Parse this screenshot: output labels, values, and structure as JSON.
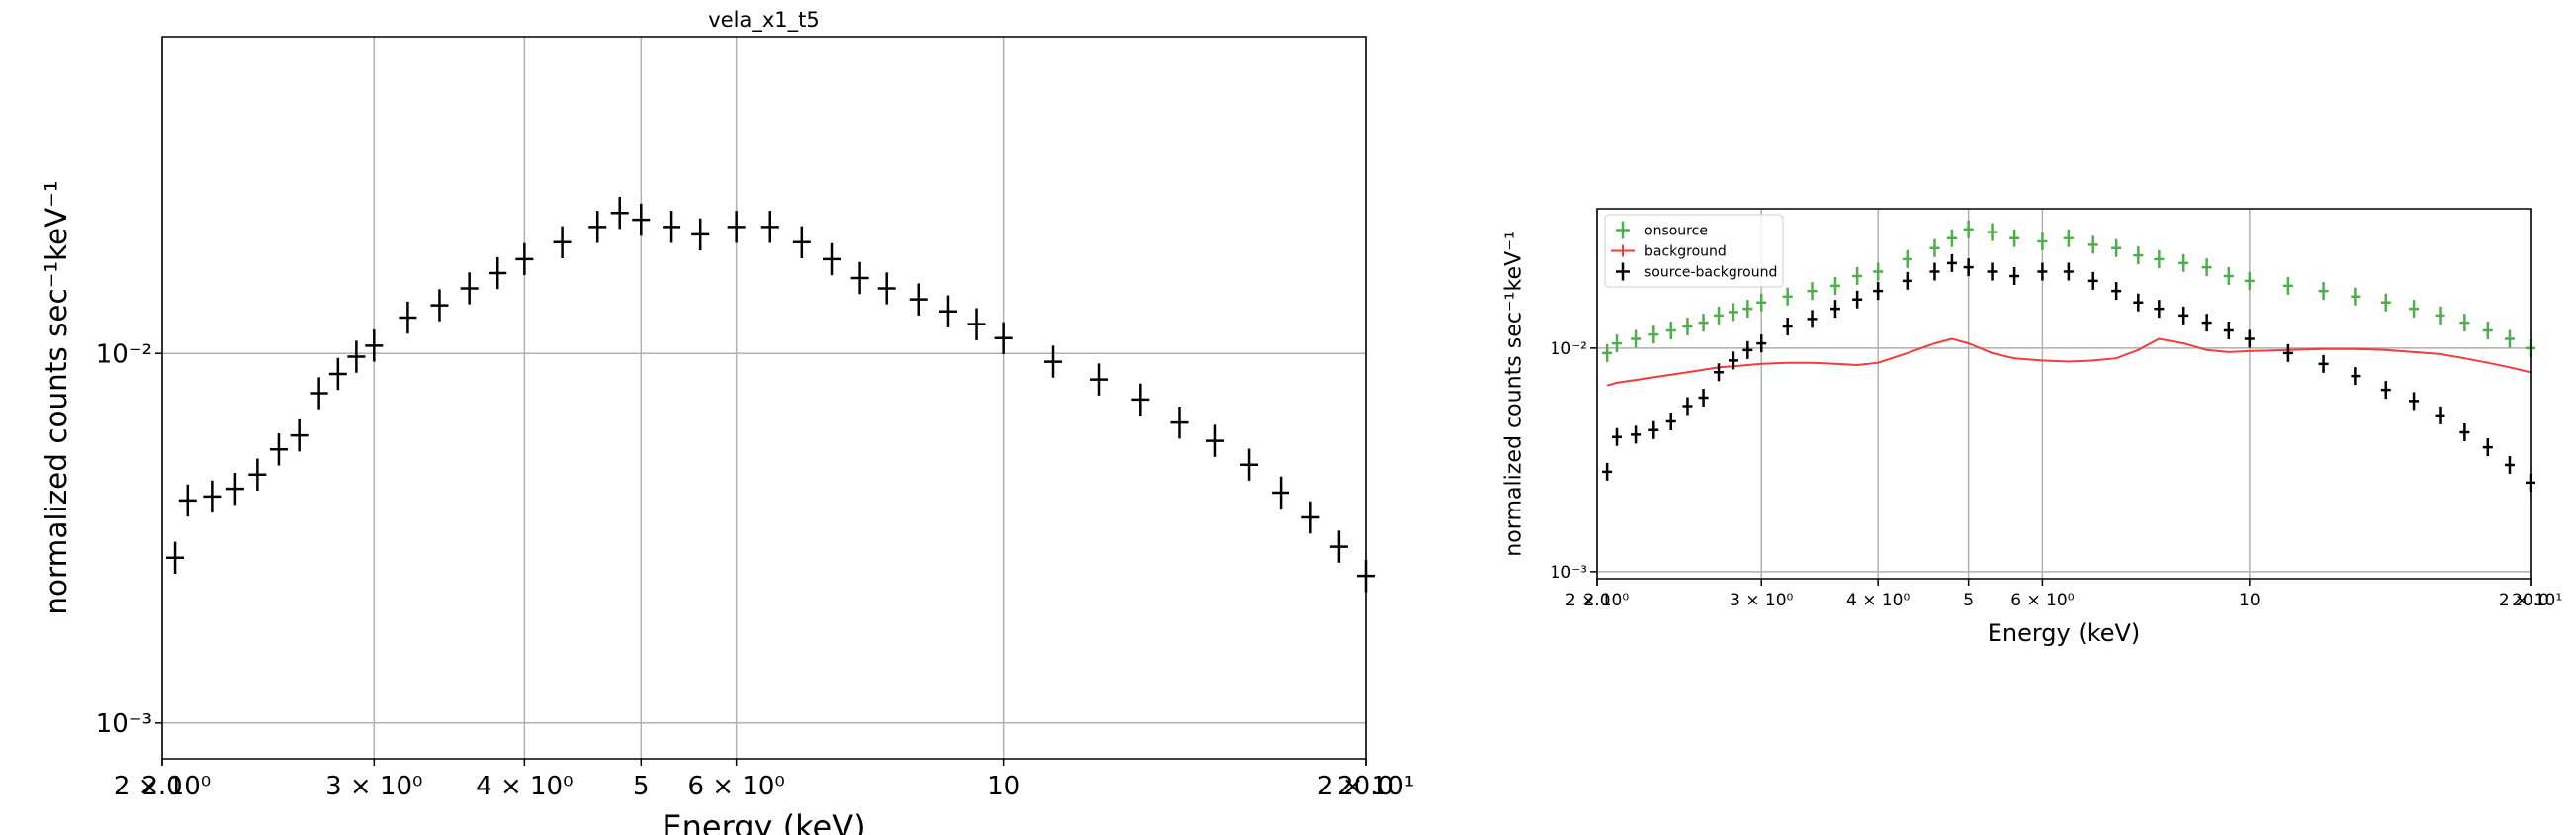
{
  "chart_data": [
    {
      "type": "scatter",
      "title": "vela_x1_t5",
      "x_label": "Energy (keV)",
      "y_label": "normalized counts sec⁻¹keV⁻¹",
      "xscale": "log",
      "yscale": "log",
      "grid": true,
      "xlim": [
        2,
        20
      ],
      "ylim": [
        0.0008,
        0.072
      ],
      "xticks": [
        {
          "value": 2,
          "label": "2 × 10⁰"
        },
        {
          "value": 2,
          "label": "2.0"
        },
        {
          "value": 3,
          "label": "3 × 10⁰"
        },
        {
          "value": 4,
          "label": "4 × 10⁰"
        },
        5.0,
        {
          "value": 6,
          "label": "6 × 10⁰"
        },
        10.0,
        {
          "value": 20,
          "label": "2 × 10¹"
        },
        {
          "value": 20,
          "label": "20.0"
        }
      ],
      "yticks": [
        {
          "value": 0.001,
          "label": "10⁻³"
        },
        {
          "value": 0.01,
          "label": "10⁻²"
        }
      ],
      "x": [
        2.05,
        2.1,
        2.2,
        2.3,
        2.4,
        2.5,
        2.6,
        2.7,
        2.8,
        2.9,
        3.0,
        3.2,
        3.4,
        3.6,
        3.8,
        4.0,
        4.3,
        4.6,
        4.8,
        5.0,
        5.3,
        5.6,
        6.0,
        6.4,
        6.8,
        7.2,
        7.6,
        8.0,
        8.5,
        9.0,
        9.5,
        10,
        11,
        12,
        13,
        14,
        15,
        16,
        17,
        18,
        19,
        20
      ],
      "series": [
        {
          "color": "#000000",
          "marker": "cross",
          "values": [
            0.0028,
            0.004,
            0.0041,
            0.0043,
            0.0047,
            0.0055,
            0.006,
            0.0078,
            0.0088,
            0.0098,
            0.0105,
            0.0125,
            0.0135,
            0.015,
            0.0165,
            0.018,
            0.02,
            0.022,
            0.024,
            0.023,
            0.022,
            0.021,
            0.022,
            0.022,
            0.02,
            0.018,
            0.016,
            0.015,
            0.014,
            0.013,
            0.012,
            0.011,
            0.0095,
            0.0085,
            0.0075,
            0.0065,
            0.0058,
            0.005,
            0.0042,
            0.0036,
            0.003,
            0.0025
          ]
        }
      ]
    },
    {
      "type": "scatter",
      "x_label": "Energy (keV)",
      "y_label": "normalized counts sec⁻¹keV⁻¹",
      "xscale": "log",
      "yscale": "log",
      "grid": true,
      "legend": "upper left",
      "xlim": [
        2,
        20
      ],
      "ylim": [
        0.00093,
        0.042
      ],
      "xticks": [
        {
          "value": 2,
          "label": "2 × 10⁰"
        },
        {
          "value": 2,
          "label": "2.0"
        },
        {
          "value": 3,
          "label": "3 × 10⁰"
        },
        {
          "value": 4,
          "label": "4 × 10⁰"
        },
        5.0,
        {
          "value": 6,
          "label": "6 × 10⁰"
        },
        10.0,
        {
          "value": 20,
          "label": "2 × 10¹"
        },
        {
          "value": 20,
          "label": "20.0"
        }
      ],
      "yticks": [
        {
          "value": 0.001,
          "label": "10⁻³"
        },
        {
          "value": 0.01,
          "label": "10⁻²"
        }
      ],
      "x": [
        2.05,
        2.1,
        2.2,
        2.3,
        2.4,
        2.5,
        2.6,
        2.7,
        2.8,
        2.9,
        3.0,
        3.2,
        3.4,
        3.6,
        3.8,
        4.0,
        4.3,
        4.6,
        4.8,
        5.0,
        5.3,
        5.6,
        6.0,
        6.4,
        6.8,
        7.2,
        7.6,
        8.0,
        8.5,
        9.0,
        9.5,
        10,
        11,
        12,
        13,
        14,
        15,
        16,
        17,
        18,
        19,
        20
      ],
      "series": [
        {
          "name": "onsource",
          "color": "#4daf4a",
          "marker": "cross",
          "values": [
            0.0095,
            0.0105,
            0.011,
            0.0115,
            0.012,
            0.0125,
            0.013,
            0.014,
            0.0145,
            0.015,
            0.016,
            0.017,
            0.018,
            0.019,
            0.021,
            0.022,
            0.025,
            0.028,
            0.031,
            0.034,
            0.033,
            0.031,
            0.03,
            0.031,
            0.029,
            0.028,
            0.026,
            0.025,
            0.024,
            0.023,
            0.021,
            0.02,
            0.019,
            0.018,
            0.017,
            0.016,
            0.015,
            0.014,
            0.013,
            0.012,
            0.011,
            0.01
          ]
        },
        {
          "name": "background",
          "color": "#f03c3c",
          "marker": "line",
          "values": [
            0.0068,
            0.007,
            0.0072,
            0.0074,
            0.0076,
            0.0078,
            0.008,
            0.0082,
            0.0083,
            0.0084,
            0.0085,
            0.0086,
            0.0086,
            0.0085,
            0.0084,
            0.0086,
            0.0095,
            0.0105,
            0.011,
            0.0105,
            0.0095,
            0.009,
            0.0088,
            0.0087,
            0.0088,
            0.009,
            0.0098,
            0.011,
            0.0105,
            0.0098,
            0.0096,
            0.0097,
            0.0098,
            0.0099,
            0.0099,
            0.0098,
            0.0096,
            0.0094,
            0.009,
            0.0086,
            0.0082,
            0.0078
          ]
        },
        {
          "name": "source-background",
          "color": "#000000",
          "marker": "cross",
          "values": [
            0.0028,
            0.004,
            0.0041,
            0.0043,
            0.0047,
            0.0055,
            0.006,
            0.0078,
            0.0088,
            0.0098,
            0.0105,
            0.0125,
            0.0135,
            0.015,
            0.0165,
            0.018,
            0.02,
            0.022,
            0.024,
            0.023,
            0.022,
            0.021,
            0.022,
            0.022,
            0.02,
            0.018,
            0.016,
            0.015,
            0.014,
            0.013,
            0.012,
            0.011,
            0.0095,
            0.0085,
            0.0075,
            0.0065,
            0.0058,
            0.005,
            0.0042,
            0.0036,
            0.003,
            0.0025
          ]
        }
      ]
    }
  ]
}
